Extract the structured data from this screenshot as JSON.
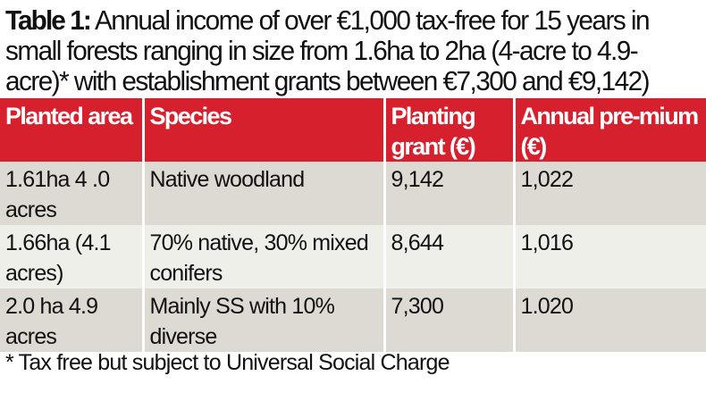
{
  "title": {
    "label": "Table 1:",
    "text": "Annual income of over €1,000 tax-free for 15 years in small forests ranging in size from 1.6ha to  2ha (4-acre to 4.9-acre)* with establishment grants between €7,300 and €9,142)"
  },
  "table": {
    "headers": [
      "Planted area",
      "Species",
      "Planting grant (€)",
      "Annual pre-mium (€)"
    ],
    "rows": [
      [
        "1.61ha 4 .0 acres",
        "Native woodland",
        "9,142",
        "1,022"
      ],
      [
        "1.66ha (4.1 acres)",
        "70% native, 30% mixed conifers",
        "8,644",
        "1,016"
      ],
      [
        "2.0 ha 4.9 acres",
        "Mainly SS with 10% diverse",
        "7,300",
        "1.020"
      ]
    ]
  },
  "footnote": "* Tax free but subject to Universal Social Charge",
  "colors": {
    "header_bg": "#d7202e",
    "row_dark": "#dcdad3",
    "row_light": "#efefea"
  }
}
